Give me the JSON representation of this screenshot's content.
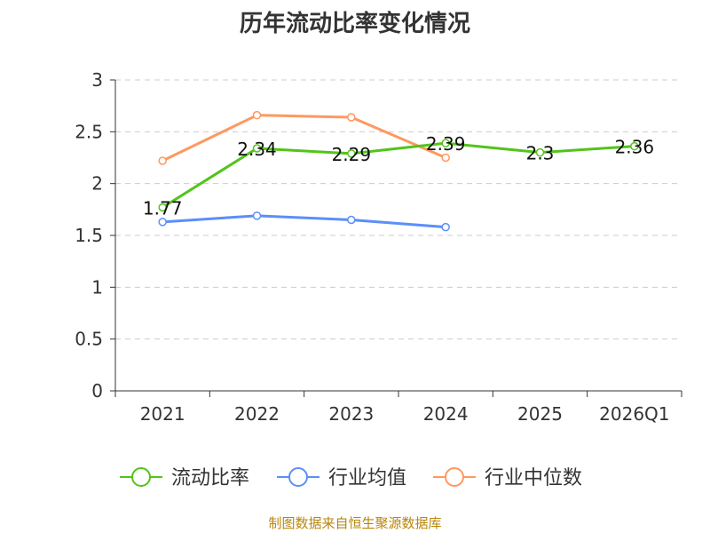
{
  "chart_data": {
    "type": "line",
    "title": "历年流动比率变化情况",
    "categories": [
      "2021",
      "2022",
      "2023",
      "2024",
      "2025",
      "2026Q1"
    ],
    "ylim": [
      0,
      3
    ],
    "yticks": [
      "0",
      "0.5",
      "1",
      "1.5",
      "2",
      "2.5",
      "3"
    ],
    "ytick_values": [
      0,
      0.5,
      1,
      1.5,
      2,
      2.5,
      3
    ],
    "grid": true,
    "legend_position": "bottom",
    "series": [
      {
        "name": "流动比率",
        "color": "#52c41a",
        "values": [
          1.77,
          2.34,
          2.29,
          2.39,
          2.3,
          2.36
        ],
        "labels": [
          "1.77",
          "2.34",
          "2.29",
          "2.39",
          "2.3",
          "2.36"
        ]
      },
      {
        "name": "行业均值",
        "color": "#5b8ff9",
        "values": [
          1.63,
          1.69,
          1.65,
          1.58,
          null,
          null
        ]
      },
      {
        "name": "行业中位数",
        "color": "#ff9860",
        "values": [
          2.22,
          2.66,
          2.64,
          2.25,
          null,
          null
        ]
      }
    ],
    "source": "制图数据来自恒生聚源数据库"
  }
}
